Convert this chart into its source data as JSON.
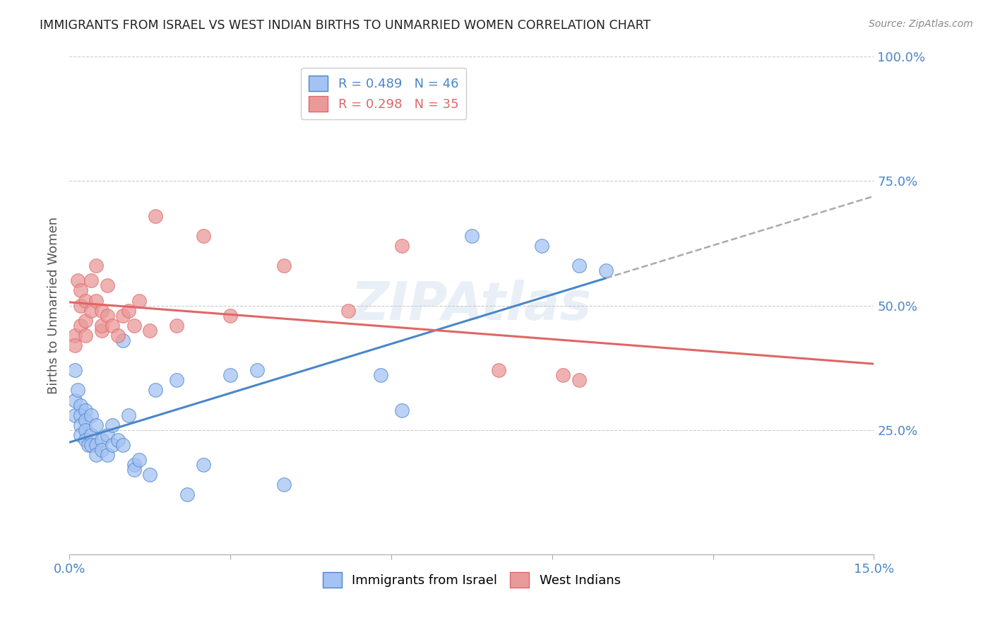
{
  "title": "IMMIGRANTS FROM ISRAEL VS WEST INDIAN BIRTHS TO UNMARRIED WOMEN CORRELATION CHART",
  "source_text": "Source: ZipAtlas.com",
  "ylabel": "Births to Unmarried Women",
  "xlim": [
    0.0,
    0.15
  ],
  "ylim": [
    0.0,
    1.0
  ],
  "xticks": [
    0.0,
    0.03,
    0.06,
    0.09,
    0.12,
    0.15
  ],
  "xtick_labels": [
    "0.0%",
    "",
    "",
    "",
    "",
    "15.0%"
  ],
  "ytick_positions": [
    0.0,
    0.25,
    0.5,
    0.75,
    1.0
  ],
  "ytick_labels": [
    "",
    "25.0%",
    "50.0%",
    "75.0%",
    "100.0%"
  ],
  "legend_r1": "R = 0.489",
  "legend_n1": "N = 46",
  "legend_r2": "R = 0.298",
  "legend_n2": "N = 35",
  "color_blue": "#a4c2f4",
  "color_pink": "#ea9999",
  "color_blue_line": "#4a86c8",
  "color_pink_line": "#e06666",
  "israel_x": [
    0.001,
    0.001,
    0.001,
    0.0015,
    0.002,
    0.002,
    0.002,
    0.002,
    0.003,
    0.003,
    0.003,
    0.003,
    0.0035,
    0.004,
    0.004,
    0.004,
    0.005,
    0.005,
    0.005,
    0.006,
    0.006,
    0.007,
    0.007,
    0.008,
    0.008,
    0.009,
    0.01,
    0.01,
    0.011,
    0.012,
    0.012,
    0.013,
    0.015,
    0.016,
    0.02,
    0.022,
    0.025,
    0.03,
    0.035,
    0.04,
    0.058,
    0.062,
    0.075,
    0.088,
    0.095,
    0.1
  ],
  "israel_y": [
    0.37,
    0.31,
    0.28,
    0.33,
    0.3,
    0.28,
    0.26,
    0.24,
    0.29,
    0.27,
    0.25,
    0.23,
    0.22,
    0.28,
    0.24,
    0.22,
    0.26,
    0.22,
    0.2,
    0.23,
    0.21,
    0.24,
    0.2,
    0.26,
    0.22,
    0.23,
    0.43,
    0.22,
    0.28,
    0.18,
    0.17,
    0.19,
    0.16,
    0.33,
    0.35,
    0.12,
    0.18,
    0.36,
    0.37,
    0.14,
    0.36,
    0.29,
    0.64,
    0.62,
    0.58,
    0.57
  ],
  "west_x": [
    0.001,
    0.001,
    0.0015,
    0.002,
    0.002,
    0.002,
    0.003,
    0.003,
    0.003,
    0.004,
    0.004,
    0.005,
    0.005,
    0.006,
    0.006,
    0.006,
    0.007,
    0.007,
    0.008,
    0.009,
    0.01,
    0.011,
    0.012,
    0.013,
    0.015,
    0.016,
    0.02,
    0.025,
    0.03,
    0.04,
    0.052,
    0.062,
    0.08,
    0.092,
    0.095
  ],
  "west_y": [
    0.44,
    0.42,
    0.55,
    0.53,
    0.5,
    0.46,
    0.51,
    0.47,
    0.44,
    0.55,
    0.49,
    0.58,
    0.51,
    0.45,
    0.49,
    0.46,
    0.54,
    0.48,
    0.46,
    0.44,
    0.48,
    0.49,
    0.46,
    0.51,
    0.45,
    0.68,
    0.46,
    0.64,
    0.48,
    0.58,
    0.49,
    0.62,
    0.37,
    0.36,
    0.35
  ]
}
